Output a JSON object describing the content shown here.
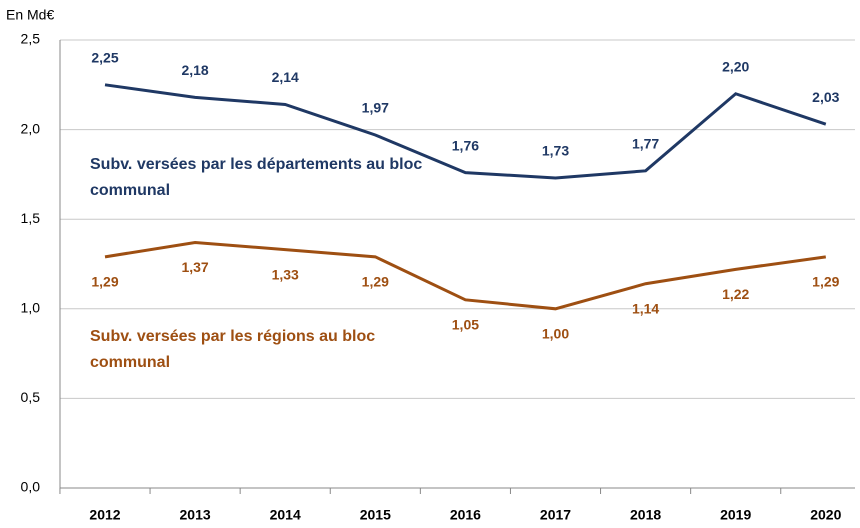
{
  "chart_data": {
    "type": "line",
    "title": "En Md€",
    "categories": [
      "2012",
      "2013",
      "2014",
      "2015",
      "2016",
      "2017",
      "2018",
      "2019",
      "2020"
    ],
    "series": [
      {
        "name": "Subv. versées par les départements au bloc communal",
        "color": "#1f3864",
        "values": [
          2.25,
          2.18,
          2.14,
          1.97,
          1.76,
          1.73,
          1.77,
          2.2,
          2.03
        ],
        "value_labels": [
          "2,25",
          "2,18",
          "2,14",
          "1,97",
          "1,76",
          "1,73",
          "1,77",
          "2,20",
          "2,03"
        ]
      },
      {
        "name": "Subv. versées par les régions au bloc communal",
        "color": "#9e4f12",
        "values": [
          1.29,
          1.37,
          1.33,
          1.29,
          1.05,
          1.0,
          1.14,
          1.22,
          1.29
        ],
        "value_labels": [
          "1,29",
          "1,37",
          "1,33",
          "1,29",
          "1,05",
          "1,00",
          "1,14",
          "1,22",
          "1,29"
        ]
      }
    ],
    "ylim": [
      0,
      2.5
    ],
    "yticks": [
      {
        "value": 0,
        "label": "0,0"
      },
      {
        "value": 0.5,
        "label": "0,5"
      },
      {
        "value": 1,
        "label": "1,0"
      },
      {
        "value": 1.5,
        "label": "1,5"
      },
      {
        "value": 2,
        "label": "2,0"
      },
      {
        "value": 2.5,
        "label": "2,5"
      }
    ],
    "grid": true
  }
}
